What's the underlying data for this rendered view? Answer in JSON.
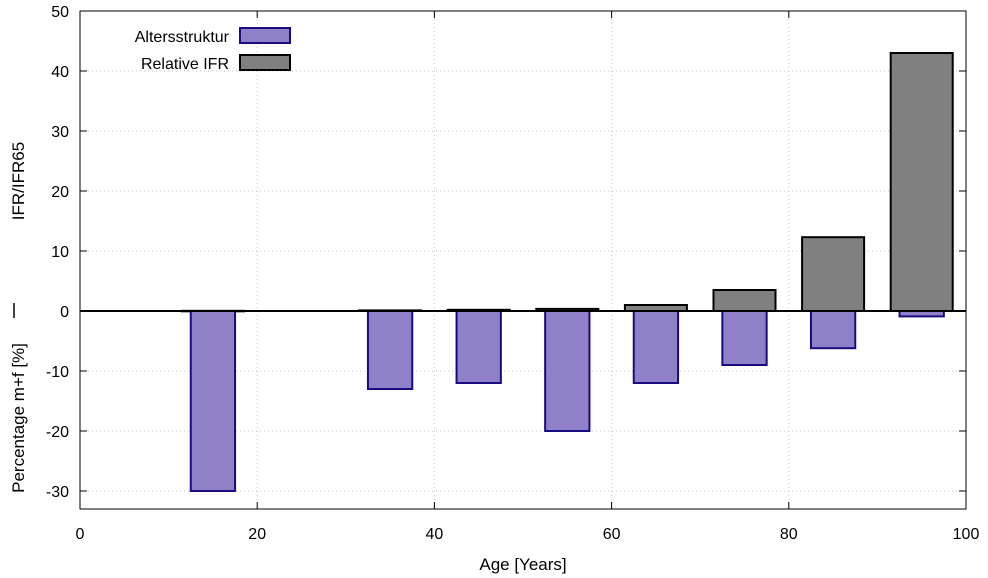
{
  "chart_data": {
    "type": "bar",
    "xlabel": "Age [Years]",
    "ylabel_top": "IFR/IFR65",
    "ylabel_bottom": "Percentage m+f [%]",
    "xlim": [
      0,
      100
    ],
    "ylim": [
      -33,
      50
    ],
    "xticks": [
      0,
      20,
      40,
      60,
      80,
      100
    ],
    "yticks": [
      -30,
      -20,
      -10,
      0,
      10,
      20,
      30,
      40,
      50
    ],
    "grid": true,
    "legend_position": "top-left",
    "series": [
      {
        "name": "Altersstruktur",
        "color": "#9080c8",
        "edge_color": "#1a0a80",
        "x": [
          15,
          35,
          45,
          55,
          65,
          75,
          85,
          95
        ],
        "values": [
          -30,
          -13,
          -12,
          -20,
          -12,
          -9,
          -6.2,
          -0.9
        ]
      },
      {
        "name": "Relative IFR",
        "color": "#808080",
        "edge_color": "#000000",
        "x": [
          15,
          35,
          45,
          55,
          65,
          75,
          85,
          95
        ],
        "values": [
          0.03,
          0.1,
          0.2,
          0.35,
          1.0,
          3.5,
          12.3,
          43
        ]
      }
    ]
  }
}
